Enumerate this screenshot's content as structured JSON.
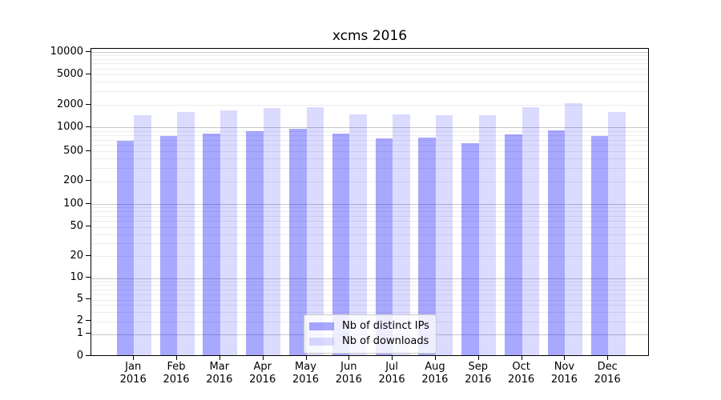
{
  "figure": {
    "title": "xcms 2016"
  },
  "legend": {
    "items": [
      {
        "label": "Nb of distinct IPs",
        "color": "rgba(0,0,255,0.34)"
      },
      {
        "label": "Nb of downloads",
        "color": "rgba(0,0,255,0.14)"
      }
    ]
  },
  "chart_data": {
    "type": "bar",
    "title": "xcms 2016",
    "categories": [
      "Jan 2016",
      "Feb 2016",
      "Mar 2016",
      "Apr 2016",
      "May 2016",
      "Jun 2016",
      "Jul 2016",
      "Aug 2016",
      "Sep 2016",
      "Oct 2016",
      "Nov 2016",
      "Dec 2016"
    ],
    "series": [
      {
        "name": "Nb of distinct IPs",
        "color": "rgba(0,0,255,0.34)",
        "values": [
          670,
          760,
          810,
          880,
          935,
          820,
          715,
          730,
          625,
          800,
          900,
          760
        ]
      },
      {
        "name": "Nb of downloads",
        "color": "rgba(0,0,255,0.14)",
        "values": [
          1400,
          1550,
          1640,
          1790,
          1800,
          1455,
          1435,
          1410,
          1400,
          1820,
          2070,
          1580
        ]
      }
    ],
    "xlabel": "",
    "ylabel": "",
    "yscale": "symlog",
    "ylim": [
      0,
      10000
    ],
    "yticks": [
      0,
      1,
      2,
      5,
      10,
      20,
      50,
      100,
      200,
      500,
      1000,
      2000,
      5000,
      10000
    ],
    "grid": "major+minor",
    "legend_position": "lower center"
  },
  "colors": {
    "bar_distinct_ips": "rgba(0,0,255,0.34)",
    "bar_downloads": "rgba(0,0,255,0.14)",
    "major_grid": "#c8c8c8",
    "minor_grid": "#ececec",
    "spine": "#000000",
    "background": "#ffffff"
  }
}
